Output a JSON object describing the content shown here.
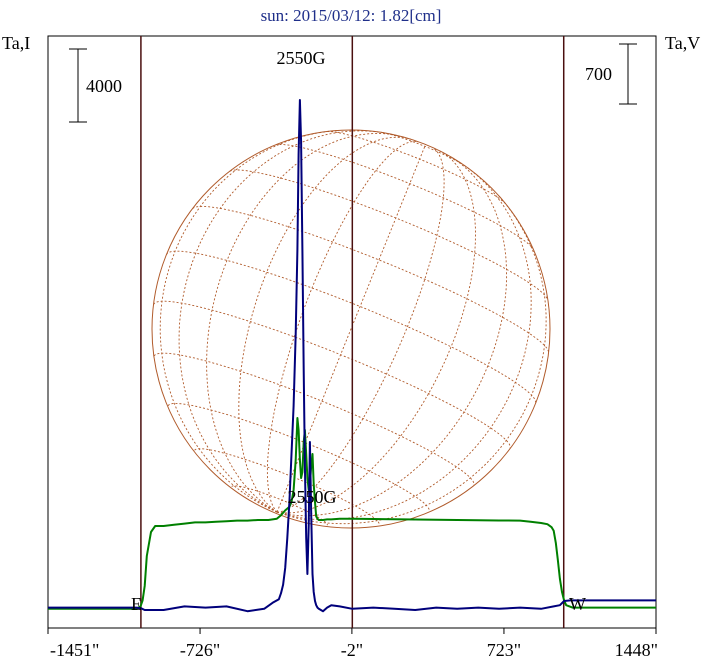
{
  "chart_data": {
    "type": "line",
    "title": "sun: 2015/03/12: 1.82[cm]",
    "left_axis_label": "Ta,I",
    "right_axis_label": "Ta,V",
    "left_scale_bar_label": "4000",
    "right_scale_bar_label": "700",
    "x_ticks": [
      -1451,
      -726,
      -2,
      723,
      1448
    ],
    "x_tick_labels": [
      "-1451\"",
      "-726\"",
      "-2\"",
      "723\"",
      "1448\""
    ],
    "xlim": [
      -1451,
      1448
    ],
    "limb_marks": [
      -1008,
      0,
      1008
    ],
    "disk_labels": {
      "east": "E",
      "west": "W"
    },
    "grid": true,
    "annotations": [
      {
        "text": "2550G",
        "x": -250,
        "series": "I"
      },
      {
        "text": "2550G",
        "x": -200,
        "series": "V"
      }
    ],
    "series": [
      {
        "name": "I",
        "color": "#00007b",
        "x": [
          -1451,
          -1030,
          -1008,
          -990,
          -900,
          -800,
          -700,
          -600,
          -500,
          -420,
          -380,
          -350,
          -340,
          -330,
          -320,
          -310,
          -300,
          -290,
          -280,
          -270,
          -262,
          -256,
          -250,
          -244,
          -238,
          -232,
          -226,
          -220,
          -214,
          -208,
          -202,
          -196,
          -190,
          -184,
          -178,
          -172,
          -166,
          -160,
          -150,
          -140,
          -120,
          -100,
          -60,
          0,
          100,
          200,
          300,
          400,
          500,
          600,
          700,
          800,
          900,
          960,
          990,
          1010,
          1040,
          1100,
          1200,
          1300,
          1448
        ],
        "y": [
          40,
          40,
          30,
          0,
          0,
          60,
          40,
          60,
          -20,
          20,
          120,
          180,
          280,
          420,
          700,
          1200,
          1800,
          2600,
          3400,
          4600,
          6000,
          7600,
          8500,
          7800,
          6000,
          4000,
          2400,
          1200,
          600,
          1400,
          2800,
          1600,
          600,
          300,
          150,
          80,
          40,
          20,
          0,
          -20,
          40,
          80,
          60,
          20,
          40,
          20,
          0,
          40,
          20,
          40,
          20,
          40,
          20,
          60,
          80,
          150,
          160,
          160,
          160,
          160,
          160
        ]
      },
      {
        "name": "V",
        "color": "#008000",
        "x": [
          -1451,
          -1030,
          -1010,
          -1000,
          -990,
          -980,
          -960,
          -940,
          -900,
          -850,
          -800,
          -750,
          -700,
          -650,
          -600,
          -550,
          -500,
          -450,
          -400,
          -360,
          -340,
          -320,
          -300,
          -290,
          -280,
          -270,
          -262,
          -256,
          -250,
          -244,
          -238,
          -232,
          -226,
          -220,
          -214,
          -208,
          -202,
          -196,
          -190,
          -184,
          -178,
          -172,
          -166,
          -160,
          -150,
          -140,
          -120,
          -100,
          -60,
          0,
          100,
          200,
          300,
          400,
          500,
          600,
          700,
          800,
          850,
          900,
          930,
          950,
          960,
          970,
          980,
          990,
          1000,
          1010,
          1020,
          1050,
          1100,
          1200,
          1300,
          1448
        ],
        "y": [
          10,
          10,
          30,
          80,
          200,
          450,
          650,
          700,
          700,
          710,
          720,
          730,
          730,
          735,
          740,
          745,
          745,
          750,
          750,
          760,
          790,
          830,
          860,
          900,
          1000,
          1250,
          1600,
          1500,
          1250,
          1100,
          1150,
          1400,
          1500,
          1300,
          1100,
          1000,
          1050,
          1200,
          1300,
          1050,
          900,
          780,
          760,
          750,
          750,
          750,
          755,
          755,
          760,
          760,
          758,
          756,
          754,
          752,
          750,
          748,
          746,
          745,
          735,
          725,
          715,
          690,
          660,
          560,
          420,
          260,
          150,
          80,
          40,
          20,
          20,
          20,
          20,
          20
        ]
      }
    ]
  }
}
